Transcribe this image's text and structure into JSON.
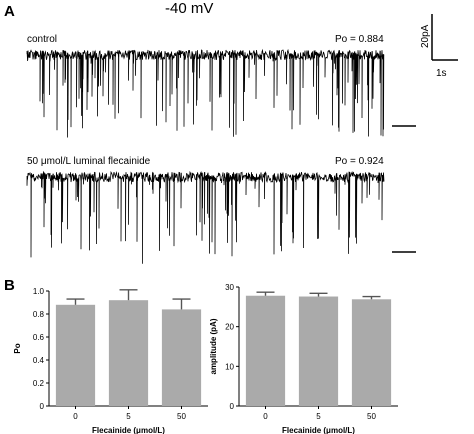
{
  "panel_a": {
    "letter": "A",
    "voltage": "-40 mV",
    "scalebar": {
      "current": "20pA",
      "time": "1s"
    },
    "traces": [
      {
        "label": "control",
        "po_label": "Po = 0.884",
        "po": 0.884
      },
      {
        "label": "50 μmol/L luminal flecainide",
        "po_label": "Po = 0.924",
        "po": 0.924
      }
    ]
  },
  "chart_data": [
    {
      "type": "bar",
      "panel": "B",
      "categories": [
        "0",
        "5",
        "50"
      ],
      "values": [
        0.88,
        0.92,
        0.84
      ],
      "errors": [
        0.05,
        0.09,
        0.09
      ],
      "xlabel": "Flecainide (μmol/L)",
      "ylabel": "Po",
      "ylim": [
        0,
        1.0
      ],
      "yticks": [
        "0",
        "0.2",
        "0.4",
        "0.6",
        "0.8",
        "1.0"
      ],
      "bar_color": "#aaaaaa"
    },
    {
      "type": "bar",
      "categories": [
        "0",
        "5",
        "50"
      ],
      "values": [
        27.8,
        27.6,
        26.9
      ],
      "errors": [
        0.9,
        0.8,
        0.7
      ],
      "xlabel": "Flecainide (μmol/L)",
      "ylabel": "amplitude (pA)",
      "ylim": [
        0,
        30
      ],
      "yticks": [
        "0",
        "10",
        "20",
        "30"
      ],
      "bar_color": "#aaaaaa"
    }
  ]
}
